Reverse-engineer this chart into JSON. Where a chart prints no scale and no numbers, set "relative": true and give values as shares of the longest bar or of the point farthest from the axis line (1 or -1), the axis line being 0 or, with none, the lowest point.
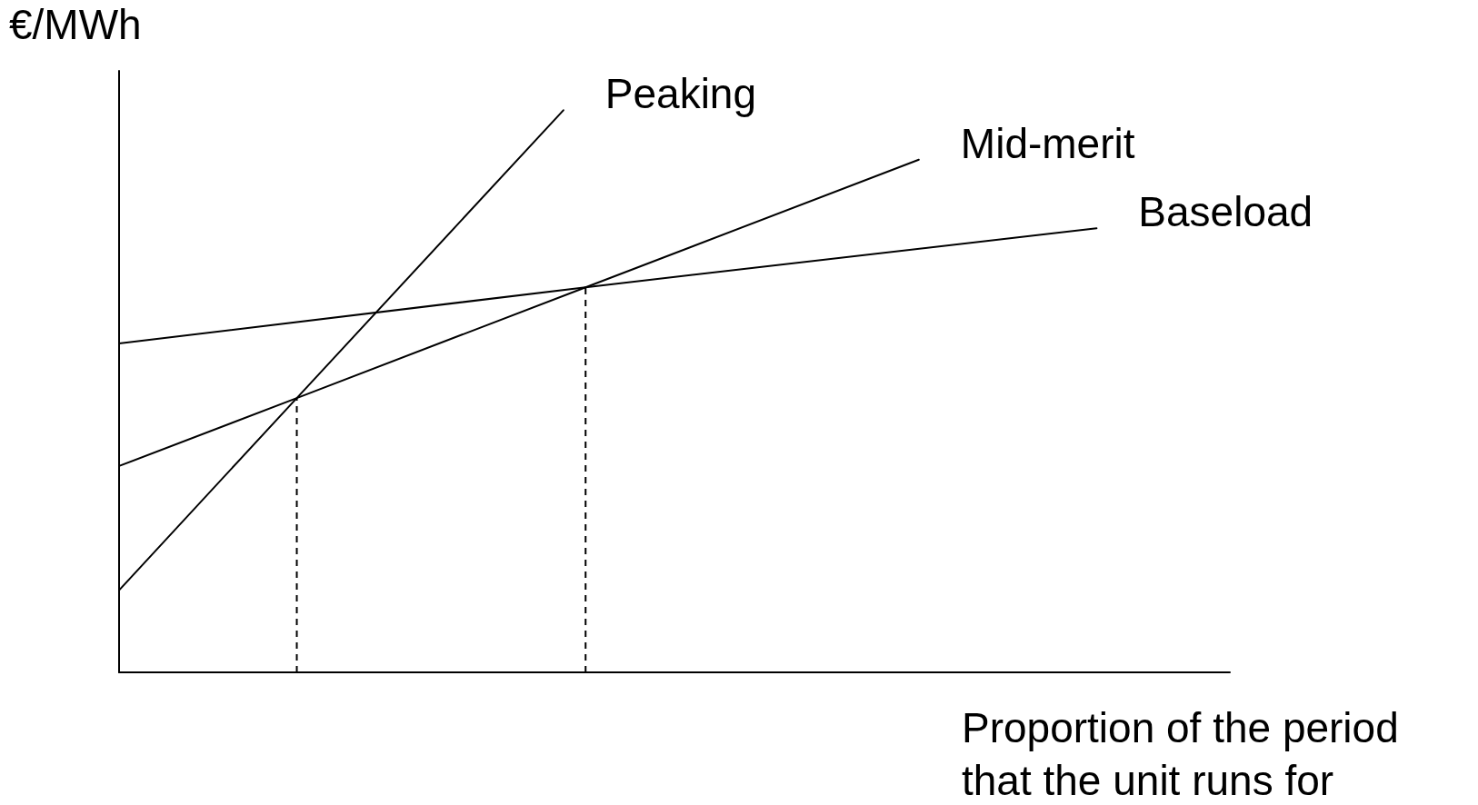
{
  "chart_data": {
    "type": "line",
    "relative": true,
    "xlabel": "Proportion of the period\nthat the unit runs for",
    "ylabel": "€/MWh",
    "marker": "none",
    "line_style": "solid",
    "categories": [
      null,
      null,
      null,
      null,
      null,
      null,
      null,
      null,
      null,
      null,
      null,
      null,
      null,
      null,
      null,
      null,
      null,
      null,
      null,
      null,
      null,
      null,
      null,
      null,
      null,
      null,
      null,
      null,
      null,
      null,
      null,
      null,
      null,
      null,
      null,
      null,
      null,
      null,
      null,
      null,
      null,
      null,
      null,
      null,
      null,
      null,
      null,
      null,
      null,
      null,
      null
    ],
    "series": [
      {
        "name": "Peaking",
        "color": "#000000",
        "values": [
          0.146,
          null,
          null,
          null,
          null,
          null,
          null,
          null,
          0.488,
          null,
          null,
          null,
          null,
          null,
          null,
          null,
          null,
          null,
          null,
          null,
          1,
          null,
          null,
          null,
          null,
          null,
          null,
          null,
          null,
          null,
          null,
          null,
          null,
          null,
          null,
          null,
          null,
          null,
          null,
          null,
          null,
          null,
          null,
          null,
          null,
          null,
          null,
          null,
          null,
          null,
          null
        ]
      },
      {
        "name": "Mid-merit",
        "color": "#000000",
        "values": [
          0.367,
          null,
          null,
          null,
          null,
          null,
          null,
          null,
          0.488,
          null,
          null,
          null,
          null,
          null,
          null,
          null,
          null,
          null,
          null,
          null,
          null,
          0.685,
          null,
          null,
          null,
          null,
          null,
          null,
          null,
          null,
          null,
          null,
          null,
          null,
          null,
          null,
          0.912,
          null,
          null,
          null,
          null,
          null,
          null,
          null,
          null,
          null,
          null,
          null,
          null,
          null,
          null
        ]
      },
      {
        "name": "Baseload",
        "color": "#000000",
        "values": [
          0.585,
          null,
          null,
          null,
          null,
          null,
          null,
          null,
          null,
          null,
          null,
          null,
          null,
          null,
          null,
          null,
          null,
          null,
          null,
          null,
          null,
          0.685,
          null,
          null,
          null,
          null,
          null,
          null,
          null,
          null,
          null,
          null,
          null,
          null,
          null,
          null,
          null,
          null,
          null,
          null,
          null,
          null,
          null,
          null,
          0.79,
          null,
          null,
          null,
          null,
          null,
          null
        ]
      }
    ]
  }
}
